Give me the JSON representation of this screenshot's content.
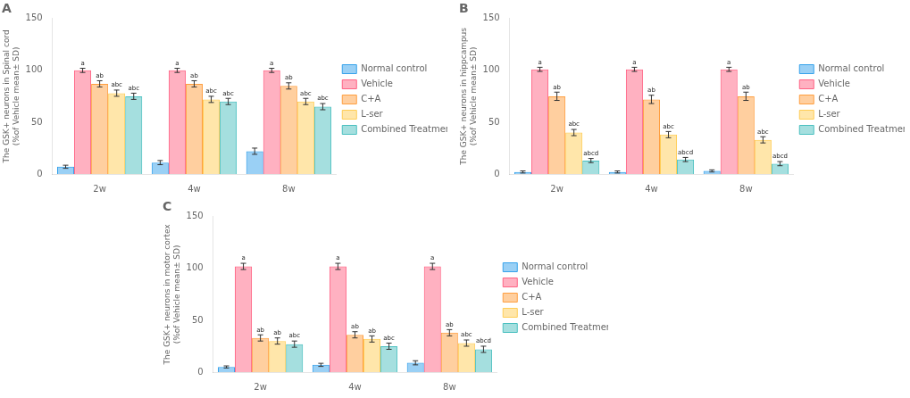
{
  "chart_data": [
    {
      "type": "bar",
      "title": "A",
      "ylabel": "The GSK+ neurons in Spinal cord\n(%of Vehicle mean± SD)",
      "categories": [
        "2w",
        "4w",
        "8w"
      ],
      "series": [
        {
          "name": "Normal control",
          "values": [
            7,
            11,
            22
          ],
          "errors": [
            1.5,
            2,
            3
          ],
          "annotations": [
            null,
            null,
            null
          ]
        },
        {
          "name": "Vehicle",
          "values": [
            100,
            100,
            100
          ],
          "errors": [
            2,
            2,
            2
          ],
          "annotations": [
            "a",
            "a",
            "a"
          ]
        },
        {
          "name": "C+A",
          "values": [
            87,
            87,
            85
          ],
          "errors": [
            3,
            3,
            3
          ],
          "annotations": [
            "ab",
            "ab",
            "ab"
          ]
        },
        {
          "name": "L-ser",
          "values": [
            78,
            72,
            70
          ],
          "errors": [
            3,
            3,
            3
          ],
          "annotations": [
            "abc",
            "abc",
            "abc"
          ]
        },
        {
          "name": "Combined Treatment",
          "values": [
            75,
            70,
            65
          ],
          "errors": [
            3,
            3,
            3
          ],
          "annotations": [
            "abc",
            "abc",
            "abc"
          ]
        }
      ],
      "ylim": [
        0,
        150
      ],
      "yticks": [
        0,
        50,
        100,
        150
      ],
      "grid": false,
      "legend": "right"
    },
    {
      "type": "bar",
      "title": "B",
      "ylabel": "The GSK+ neurons in hippcampus\n(%of Vehicle mean± SD)",
      "categories": [
        "2w",
        "4w",
        "8w"
      ],
      "series": [
        {
          "name": "Normal control",
          "values": [
            2,
            2,
            3
          ],
          "errors": [
            1,
            1,
            1
          ],
          "annotations": [
            null,
            null,
            null
          ]
        },
        {
          "name": "Vehicle",
          "values": [
            101,
            101,
            101
          ],
          "errors": [
            2,
            2,
            2
          ],
          "annotations": [
            "a",
            "a",
            "a"
          ]
        },
        {
          "name": "C+A",
          "values": [
            75,
            72,
            75
          ],
          "errors": [
            4,
            4,
            4
          ],
          "annotations": [
            "ab",
            "ab",
            "ab"
          ]
        },
        {
          "name": "L-ser",
          "values": [
            40,
            38,
            33
          ],
          "errors": [
            3,
            3,
            3
          ],
          "annotations": [
            "abc",
            "abc",
            "abc"
          ]
        },
        {
          "name": "Combined Treatment",
          "values": [
            13,
            14,
            10
          ],
          "errors": [
            2,
            2,
            2
          ],
          "annotations": [
            "abcd",
            "abcd",
            "abcd"
          ]
        }
      ],
      "ylim": [
        0,
        150
      ],
      "yticks": [
        0,
        50,
        100,
        150
      ],
      "grid": false,
      "legend": "right"
    },
    {
      "type": "bar",
      "title": "C",
      "ylabel": "The GSK+ neurons in motor cortex\n(%of Vehicle mean± SD)",
      "categories": [
        "2w",
        "4w",
        "8w"
      ],
      "series": [
        {
          "name": "Normal control",
          "values": [
            5,
            7,
            9
          ],
          "errors": [
            1,
            1.5,
            2
          ],
          "annotations": [
            null,
            null,
            null
          ]
        },
        {
          "name": "Vehicle",
          "values": [
            102,
            102,
            102
          ],
          "errors": [
            3,
            3,
            3
          ],
          "annotations": [
            "a",
            "a",
            "a"
          ]
        },
        {
          "name": "C+A",
          "values": [
            33,
            36,
            38
          ],
          "errors": [
            3,
            3,
            3
          ],
          "annotations": [
            "ab",
            "ab",
            "ab"
          ]
        },
        {
          "name": "L-ser",
          "values": [
            30,
            32,
            28
          ],
          "errors": [
            3,
            3,
            3
          ],
          "annotations": [
            "ab",
            "ab",
            "abc"
          ]
        },
        {
          "name": "Combined Treatment",
          "values": [
            27,
            25,
            22
          ],
          "errors": [
            3,
            3,
            3
          ],
          "annotations": [
            "abc",
            "abc",
            "abcd"
          ]
        }
      ],
      "ylim": [
        0,
        150
      ],
      "yticks": [
        0,
        50,
        100,
        150
      ],
      "grid": false,
      "legend": "right"
    }
  ]
}
